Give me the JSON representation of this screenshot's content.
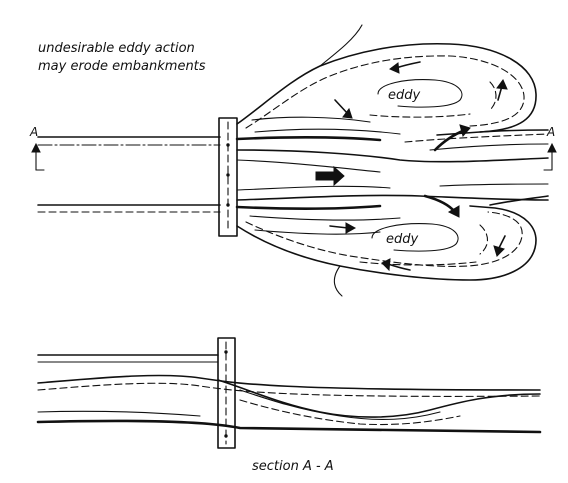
{
  "annotations": {
    "warning_line1": "undesirable eddy action",
    "warning_line2": "may erode embankments",
    "eddy_top": "eddy",
    "eddy_bottom": "eddy",
    "section_mark_left": "A",
    "section_mark_right": "A",
    "section_caption": "section A - A"
  },
  "colors": {
    "ink": "#111111",
    "background": "#ffffff"
  }
}
